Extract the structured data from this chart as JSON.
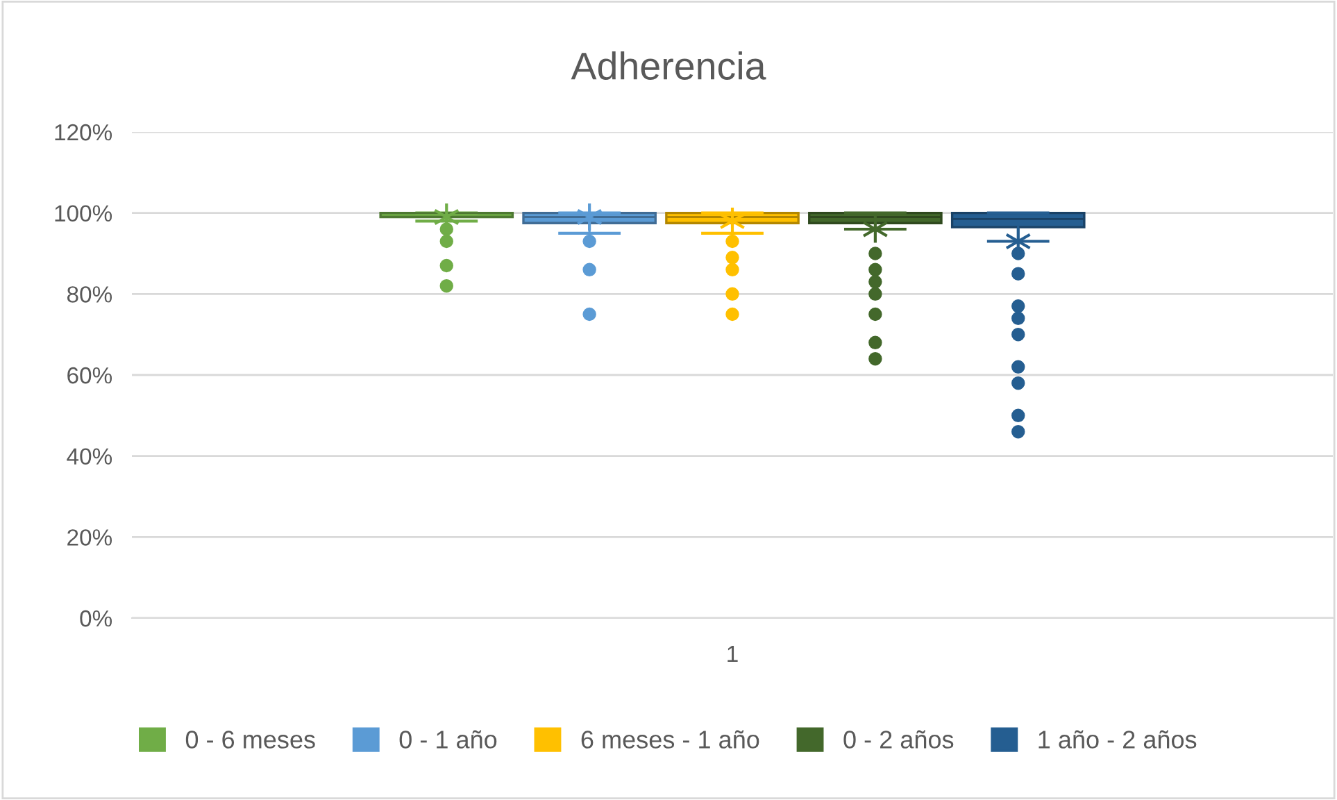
{
  "chart_data": {
    "type": "box",
    "title": "Adherencia",
    "categories": [
      "1"
    ],
    "ylim": [
      0,
      120
    ],
    "yticks": [
      {
        "value": 0,
        "label": "0%"
      },
      {
        "value": 20,
        "label": "20%"
      },
      {
        "value": 40,
        "label": "40%"
      },
      {
        "value": 60,
        "label": "60%"
      },
      {
        "value": 80,
        "label": "80%"
      },
      {
        "value": 100,
        "label": "100%"
      },
      {
        "value": 120,
        "label": "120%"
      }
    ],
    "grid": "y",
    "legend": "bottom",
    "series": [
      {
        "name": "0 - 6 meses",
        "color": "#70ad47",
        "boxes": [
          {
            "low": 98,
            "q1": 99,
            "median": 100,
            "q3": 100,
            "high": 100,
            "mean": 99,
            "outliers": [
              96,
              93,
              87,
              82
            ]
          }
        ]
      },
      {
        "name": "0 - 1 año",
        "color": "#5b9bd5",
        "boxes": [
          {
            "low": 95,
            "q1": 97.5,
            "median": 99,
            "q3": 100,
            "high": 100,
            "mean": 99,
            "outliers": [
              93,
              86,
              75
            ]
          }
        ]
      },
      {
        "name": "6 meses - 1 año",
        "color": "#ffc000",
        "boxes": [
          {
            "low": 95,
            "q1": 97.5,
            "median": 99,
            "q3": 100,
            "high": 100,
            "mean": 98,
            "outliers": [
              93,
              89,
              86,
              80,
              75
            ]
          }
        ]
      },
      {
        "name": "0 - 2 años",
        "color": "#43682b",
        "boxes": [
          {
            "low": 96,
            "q1": 97.5,
            "median": 99,
            "q3": 100,
            "high": 100,
            "mean": 96,
            "outliers": [
              90,
              86,
              83,
              80,
              75,
              68,
              64
            ]
          }
        ]
      },
      {
        "name": "1 año - 2 años",
        "color": "#255e91",
        "boxes": [
          {
            "low": 93,
            "q1": 96.5,
            "median": 98.5,
            "q3": 100,
            "high": 100,
            "mean": 93,
            "outliers": [
              90,
              85,
              77,
              74,
              70,
              62,
              58,
              50,
              46
            ]
          }
        ]
      }
    ]
  }
}
